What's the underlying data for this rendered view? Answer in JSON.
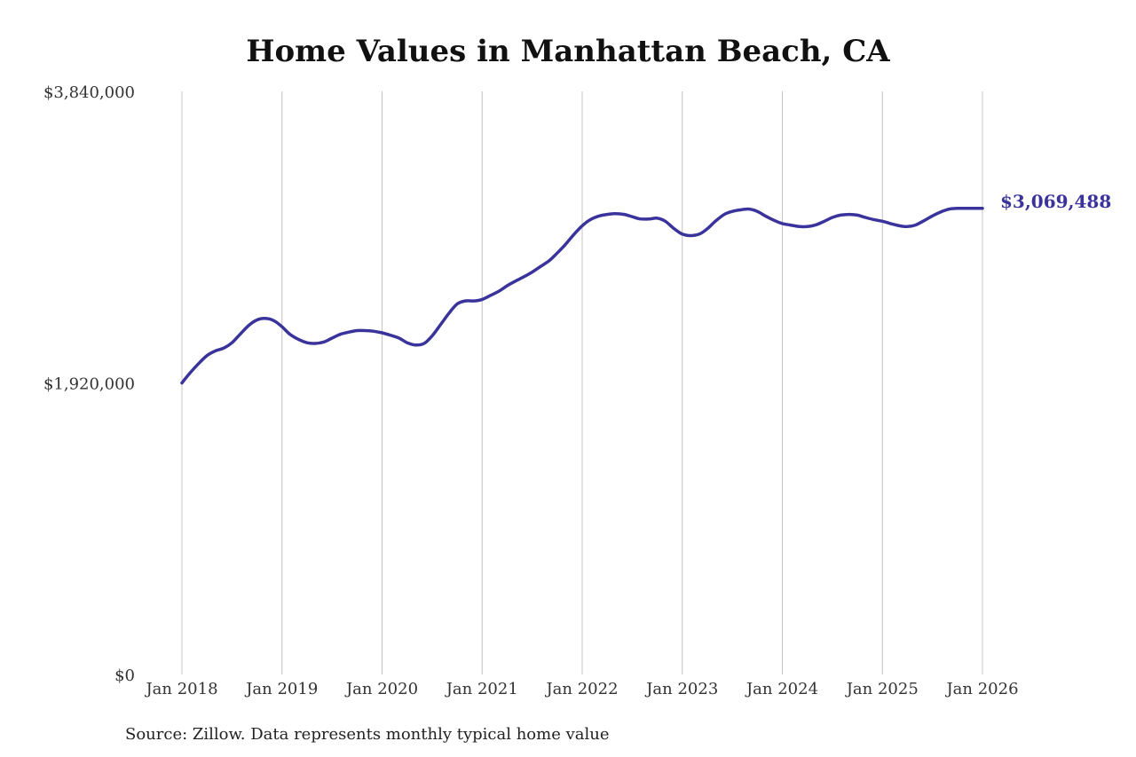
{
  "chart_data": {
    "type": "line",
    "title": "Home Values in Manhattan Beach, CA",
    "xlabel": "",
    "ylabel": "",
    "ylim": [
      0,
      3840000
    ],
    "y_ticks": [
      0,
      1920000,
      3840000
    ],
    "y_tick_labels": [
      "$0",
      "$1,920,000",
      "$3,840,000"
    ],
    "x_ticks": [
      2018,
      2019,
      2020,
      2021,
      2022,
      2023,
      2024,
      2025,
      2026
    ],
    "x_tick_labels": [
      "Jan 2018",
      "Jan 2019",
      "Jan 2020",
      "Jan 2021",
      "Jan 2022",
      "Jan 2023",
      "Jan 2024",
      "Jan 2025",
      "Jan 2026"
    ],
    "grid": "vertical",
    "line_color": "#3a339c",
    "end_label": "$3,069,488",
    "series": [
      {
        "x": [
          2018.0,
          2018.08,
          2018.17,
          2018.25,
          2018.33,
          2018.42,
          2018.5,
          2018.58,
          2018.67,
          2018.75,
          2018.83,
          2018.92,
          2019.0,
          2019.08,
          2019.17,
          2019.25,
          2019.33,
          2019.42,
          2019.5,
          2019.58,
          2019.67,
          2019.75,
          2019.83,
          2019.92,
          2020.0,
          2020.08,
          2020.17,
          2020.25,
          2020.33,
          2020.42,
          2020.5,
          2020.58,
          2020.67,
          2020.75,
          2020.83,
          2020.92,
          2021.0,
          2021.08,
          2021.17,
          2021.25,
          2021.33,
          2021.42,
          2021.5,
          2021.58,
          2021.67,
          2021.75,
          2021.83,
          2021.92,
          2022.0,
          2022.08,
          2022.17,
          2022.25,
          2022.33,
          2022.42,
          2022.5,
          2022.58,
          2022.67,
          2022.75,
          2022.83,
          2022.92,
          2023.0,
          2023.08,
          2023.17,
          2023.25,
          2023.33,
          2023.42,
          2023.5,
          2023.58,
          2023.67,
          2023.75,
          2023.83,
          2023.92,
          2024.0,
          2024.08,
          2024.17,
          2024.25,
          2024.33,
          2024.42,
          2024.5,
          2024.58,
          2024.67,
          2024.75,
          2024.83,
          2024.92,
          2025.0,
          2025.08,
          2025.17,
          2025.25,
          2025.33,
          2025.42,
          2025.5,
          2025.58,
          2025.67,
          2025.75,
          2025.83,
          2025.92,
          2026.0
        ],
        "y": [
          1920000,
          1985000,
          2050000,
          2100000,
          2130000,
          2150000,
          2185000,
          2240000,
          2300000,
          2335000,
          2345000,
          2330000,
          2290000,
          2240000,
          2205000,
          2185000,
          2180000,
          2190000,
          2215000,
          2240000,
          2255000,
          2265000,
          2265000,
          2260000,
          2250000,
          2235000,
          2215000,
          2185000,
          2170000,
          2180000,
          2230000,
          2300000,
          2380000,
          2440000,
          2460000,
          2460000,
          2470000,
          2495000,
          2525000,
          2560000,
          2590000,
          2620000,
          2650000,
          2685000,
          2725000,
          2775000,
          2830000,
          2900000,
          2955000,
          2995000,
          3020000,
          3030000,
          3035000,
          3030000,
          3015000,
          3000000,
          3000000,
          3005000,
          2985000,
          2935000,
          2900000,
          2890000,
          2900000,
          2935000,
          2985000,
          3030000,
          3050000,
          3060000,
          3065000,
          3050000,
          3020000,
          2990000,
          2970000,
          2960000,
          2950000,
          2950000,
          2960000,
          2985000,
          3010000,
          3025000,
          3030000,
          3025000,
          3010000,
          2995000,
          2985000,
          2970000,
          2955000,
          2950000,
          2960000,
          2990000,
          3020000,
          3045000,
          3065000,
          3069488,
          3069488,
          3069488,
          3069488
        ]
      }
    ]
  },
  "source_note": "Source: Zillow. Data represents monthly typical home value"
}
